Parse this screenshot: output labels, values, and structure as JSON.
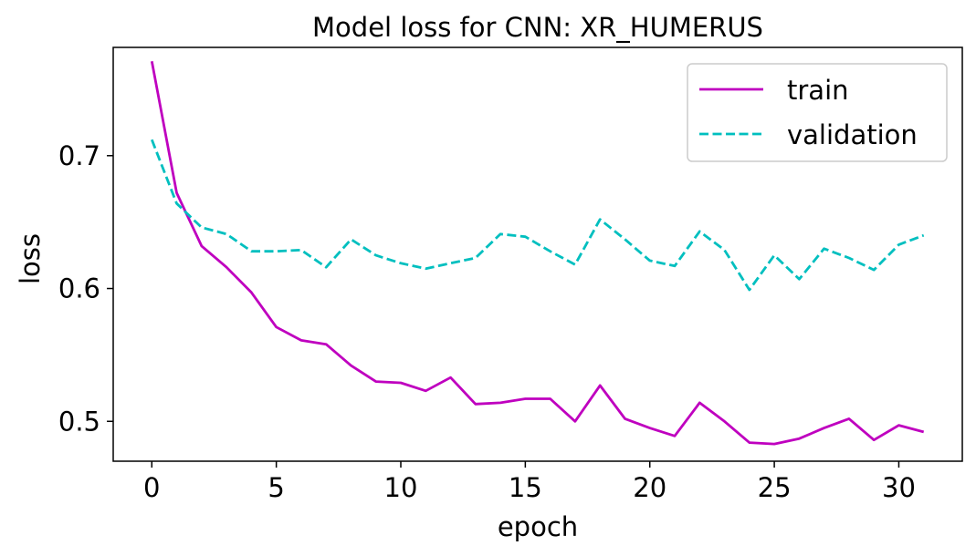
{
  "chart_data": {
    "type": "line",
    "title": "Model loss for CNN: XR_HUMERUS",
    "xlabel": "epoch",
    "ylabel": "loss",
    "xlim": [
      -1.55,
      32.55
    ],
    "ylim": [
      0.47,
      0.7815
    ],
    "xticks": [
      0,
      5,
      10,
      15,
      20,
      25,
      30
    ],
    "yticks": [
      0.5,
      0.6,
      0.7
    ],
    "ytick_labels": [
      "0.5",
      "0.6",
      "0.7"
    ],
    "grid": false,
    "legend_position": "top-right",
    "x": [
      0,
      1,
      2,
      3,
      4,
      5,
      6,
      7,
      8,
      9,
      10,
      11,
      12,
      13,
      14,
      15,
      16,
      17,
      18,
      19,
      20,
      21,
      22,
      23,
      24,
      25,
      26,
      27,
      28,
      29,
      30,
      31
    ],
    "series": [
      {
        "name": "train",
        "color": "#bf00bf",
        "style": "solid",
        "values": [
          0.771,
          0.672,
          0.632,
          0.616,
          0.597,
          0.571,
          0.561,
          0.558,
          0.542,
          0.53,
          0.529,
          0.523,
          0.533,
          0.513,
          0.514,
          0.517,
          0.517,
          0.5,
          0.527,
          0.502,
          0.495,
          0.489,
          0.514,
          0.5,
          0.484,
          0.483,
          0.487,
          0.495,
          0.502,
          0.486,
          0.497,
          0.492
        ]
      },
      {
        "name": "validation",
        "color": "#00bfbf",
        "style": "dashed",
        "values": [
          0.712,
          0.664,
          0.646,
          0.641,
          0.628,
          0.628,
          0.629,
          0.616,
          0.637,
          0.625,
          0.619,
          0.615,
          0.619,
          0.623,
          0.641,
          0.639,
          0.628,
          0.618,
          0.652,
          0.637,
          0.621,
          0.617,
          0.643,
          0.629,
          0.599,
          0.625,
          0.607,
          0.63,
          0.623,
          0.614,
          0.633,
          0.64
        ]
      }
    ]
  }
}
